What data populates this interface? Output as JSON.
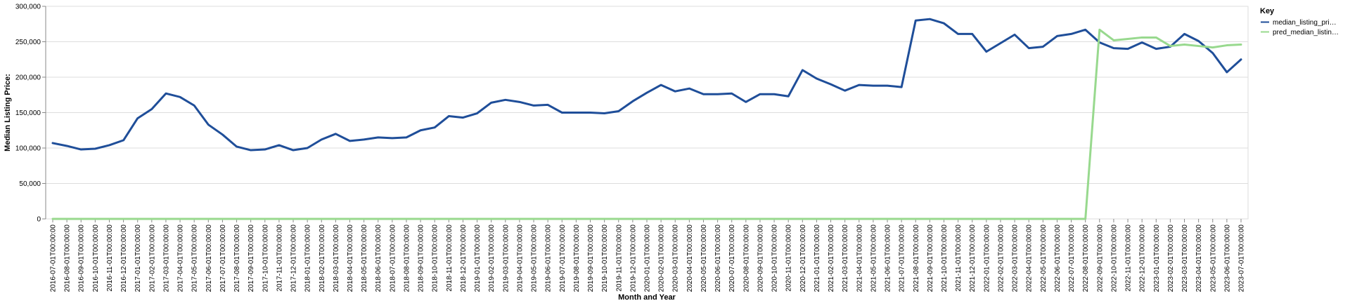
{
  "chart_data": {
    "type": "line",
    "title": "",
    "xlabel": "Month and Year",
    "ylabel": "Median Listing Price:",
    "ylim": [
      0,
      300000
    ],
    "yticks": [
      "0",
      "50,000",
      "100,000",
      "150,000",
      "200,000",
      "250,000",
      "300,000"
    ],
    "grid": true,
    "legend": {
      "title": "Key",
      "position": "right"
    },
    "x": [
      "2016-07-01T00:00:00",
      "2016-08-01T00:00:00",
      "2016-09-01T00:00:00",
      "2016-10-01T00:00:00",
      "2016-11-01T00:00:00",
      "2016-12-01T00:00:00",
      "2017-01-01T00:00:00",
      "2017-02-01T00:00:00",
      "2017-03-01T00:00:00",
      "2017-04-01T00:00:00",
      "2017-05-01T00:00:00",
      "2017-06-01T00:00:00",
      "2017-07-01T00:00:00",
      "2017-08-01T00:00:00",
      "2017-09-01T00:00:00",
      "2017-10-01T00:00:00",
      "2017-11-01T00:00:00",
      "2017-12-01T00:00:00",
      "2018-01-01T00:00:00",
      "2018-02-01T00:00:00",
      "2018-03-01T00:00:00",
      "2018-04-01T00:00:00",
      "2018-05-01T00:00:00",
      "2018-06-01T00:00:00",
      "2018-07-01T00:00:00",
      "2018-08-01T00:00:00",
      "2018-09-01T00:00:00",
      "2018-10-01T00:00:00",
      "2018-11-01T00:00:00",
      "2018-12-01T00:00:00",
      "2019-01-01T00:00:00",
      "2019-02-01T00:00:00",
      "2019-03-01T00:00:00",
      "2019-04-01T00:00:00",
      "2019-05-01T00:00:00",
      "2019-06-01T00:00:00",
      "2019-07-01T00:00:00",
      "2019-08-01T00:00:00",
      "2019-09-01T00:00:00",
      "2019-10-01T00:00:00",
      "2019-11-01T00:00:00",
      "2019-12-01T00:00:00",
      "2020-01-01T00:00:00",
      "2020-02-01T00:00:00",
      "2020-03-01T00:00:00",
      "2020-04-01T00:00:00",
      "2020-05-01T00:00:00",
      "2020-06-01T00:00:00",
      "2020-07-01T00:00:00",
      "2020-08-01T00:00:00",
      "2020-09-01T00:00:00",
      "2020-10-01T00:00:00",
      "2020-11-01T00:00:00",
      "2020-12-01T00:00:00",
      "2021-01-01T00:00:00",
      "2021-02-01T00:00:00",
      "2021-03-01T00:00:00",
      "2021-04-01T00:00:00",
      "2021-05-01T00:00:00",
      "2021-06-01T00:00:00",
      "2021-07-01T00:00:00",
      "2021-08-01T00:00:00",
      "2021-09-01T00:00:00",
      "2021-10-01T00:00:00",
      "2021-11-01T00:00:00",
      "2021-12-01T00:00:00",
      "2022-01-01T00:00:00",
      "2022-02-01T00:00:00",
      "2022-03-01T00:00:00",
      "2022-04-01T00:00:00",
      "2022-05-01T00:00:00",
      "2022-06-01T00:00:00",
      "2022-07-01T00:00:00",
      "2022-08-01T00:00:00",
      "2022-09-01T00:00:00",
      "2022-10-01T00:00:00",
      "2022-11-01T00:00:00",
      "2022-12-01T00:00:00",
      "2023-01-01T00:00:00",
      "2023-02-01T00:00:00",
      "2023-03-01T00:00:00",
      "2023-04-01T00:00:00",
      "2023-05-01T00:00:00",
      "2023-06-01T00:00:00",
      "2023-07-01T00:00:00"
    ],
    "series": [
      {
        "name": "median_listing_pri…",
        "color": "#1f4e99",
        "values": [
          107000,
          103000,
          98000,
          99000,
          104000,
          111000,
          142000,
          155000,
          177000,
          172000,
          160000,
          133000,
          119000,
          102000,
          97000,
          98000,
          104000,
          97000,
          100000,
          112000,
          120000,
          110000,
          112000,
          115000,
          114000,
          115000,
          125000,
          129000,
          145000,
          143000,
          149000,
          164000,
          168000,
          165000,
          160000,
          161000,
          150000,
          150000,
          150000,
          149000,
          152000,
          166000,
          178000,
          189000,
          180000,
          184000,
          176000,
          176000,
          177000,
          165000,
          176000,
          176000,
          173000,
          210000,
          198000,
          190000,
          181000,
          189000,
          188000,
          188000,
          186000,
          280000,
          282000,
          276000,
          261000,
          261000,
          236000,
          248000,
          260000,
          241000,
          243000,
          258000,
          261000,
          267000,
          249000,
          241000,
          240000,
          249000,
          240000,
          243000,
          261000,
          251000,
          234000,
          207000,
          225000
        ]
      },
      {
        "name": "pred_median_listin…",
        "color": "#98d98e",
        "values": [
          0,
          0,
          0,
          0,
          0,
          0,
          0,
          0,
          0,
          0,
          0,
          0,
          0,
          0,
          0,
          0,
          0,
          0,
          0,
          0,
          0,
          0,
          0,
          0,
          0,
          0,
          0,
          0,
          0,
          0,
          0,
          0,
          0,
          0,
          0,
          0,
          0,
          0,
          0,
          0,
          0,
          0,
          0,
          0,
          0,
          0,
          0,
          0,
          0,
          0,
          0,
          0,
          0,
          0,
          0,
          0,
          0,
          0,
          0,
          0,
          0,
          0,
          0,
          0,
          0,
          0,
          0,
          0,
          0,
          0,
          0,
          0,
          0,
          0,
          267000,
          252000,
          254000,
          256000,
          256000,
          244000,
          246000,
          244000,
          242000,
          245000,
          246000
        ]
      }
    ]
  }
}
